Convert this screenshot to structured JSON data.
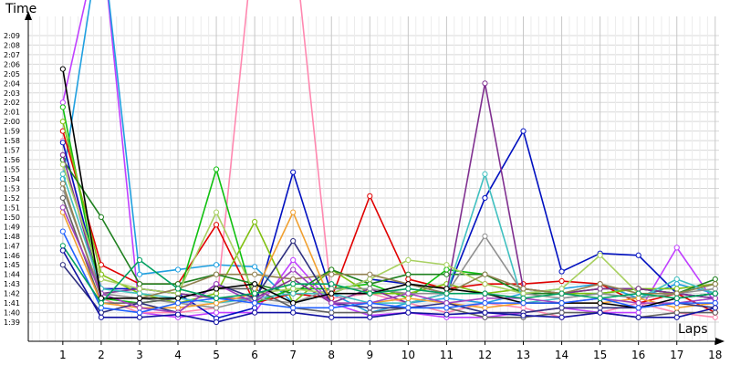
{
  "chart_data": {
    "type": "line",
    "ylabel": "Time",
    "xlabel": "Laps",
    "x": [
      1,
      2,
      3,
      4,
      5,
      6,
      7,
      8,
      9,
      10,
      11,
      12,
      13,
      14,
      15,
      16,
      17,
      18
    ],
    "xlim": [
      0.1,
      18.1
    ],
    "ylim_seconds": [
      97,
      131
    ],
    "y_tick_labels": [
      "1:39",
      "1:40",
      "1:41",
      "1:42",
      "1:43",
      "1:44",
      "1:45",
      "1:46",
      "1:47",
      "1:48",
      "1:49",
      "1:50",
      "1:51",
      "1:52",
      "1:53",
      "1:54",
      "1:55",
      "1:56",
      "1:57",
      "1:58",
      "1:59",
      "2:00",
      "2:01",
      "2:02",
      "2:03",
      "2:04",
      "2:05",
      "2:06",
      "2:07",
      "2:08",
      "2:09"
    ],
    "y_tick_values_seconds": [
      99,
      100,
      101,
      102,
      103,
      104,
      105,
      106,
      107,
      108,
      109,
      110,
      111,
      112,
      113,
      114,
      115,
      116,
      117,
      118,
      119,
      120,
      121,
      122,
      123,
      124,
      125,
      126,
      127,
      128,
      129
    ],
    "grid": true,
    "legend": "none",
    "value_unit": "seconds",
    "series": [
      {
        "color": "#c040ff",
        "values": [
          122.0,
          140.0,
          100.0,
          99.5,
          100.0,
          100.0,
          105.5,
          101.0,
          99.7,
          100.0,
          99.5,
          99.5,
          100.0,
          100.5,
          100.0,
          100.0,
          106.8,
          101.0
        ]
      },
      {
        "color": "#20a0e0",
        "values": [
          114.0,
          140.0,
          104.0,
          104.5,
          105.0,
          104.8,
          101.0,
          102.0,
          100.0,
          101.0,
          101.5,
          101.0,
          102.0,
          102.5,
          103.0,
          101.5,
          103.0,
          102.0
        ]
      },
      {
        "color": "#ff88b0",
        "values": [
          118.0,
          101.5,
          100.0,
          100.0,
          100.5,
          140.0,
          140.0,
          101.5,
          102.0,
          101.0,
          100.0,
          101.0,
          100.5,
          99.5,
          100.0,
          101.0,
          100.0,
          99.5
        ]
      },
      {
        "color": "#0010c0",
        "values": [
          117.8,
          102.5,
          102.5,
          102.0,
          99.4,
          100.5,
          114.7,
          102.0,
          103.5,
          103.0,
          102.0,
          112.0,
          119.0,
          104.3,
          106.2,
          106.0,
          102.0,
          101.5
        ]
      },
      {
        "color": "#e00000",
        "values": [
          119.0,
          105.0,
          103.0,
          103.0,
          109.2,
          101.0,
          102.0,
          101.5,
          112.2,
          103.5,
          102.5,
          103.0,
          103.0,
          103.3,
          103.0,
          101.0,
          102.0,
          100.0
        ]
      },
      {
        "color": "#10c010",
        "values": [
          121.5,
          101.5,
          101.0,
          101.5,
          115.0,
          101.0,
          102.5,
          102.5,
          103.0,
          101.5,
          104.5,
          104.0,
          102.0,
          102.0,
          102.0,
          102.5,
          102.0,
          103.0
        ]
      },
      {
        "color": "#80c010",
        "values": [
          120.0,
          104.0,
          102.0,
          101.0,
          102.0,
          109.5,
          101.0,
          104.5,
          102.0,
          102.0,
          103.0,
          102.0,
          102.5,
          102.0,
          102.0,
          102.5,
          102.5,
          103.0
        ]
      },
      {
        "color": "#208020",
        "values": [
          116.0,
          110.0,
          103.0,
          103.0,
          104.0,
          103.0,
          102.0,
          104.5,
          103.0,
          104.0,
          104.0,
          104.0,
          102.0,
          102.0,
          102.5,
          102.5,
          102.0,
          103.5
        ]
      },
      {
        "color": "#803090",
        "values": [
          116.5,
          102.0,
          102.5,
          102.0,
          101.5,
          101.5,
          103.5,
          101.0,
          102.5,
          101.0,
          102.0,
          124.0,
          102.5,
          102.0,
          102.5,
          102.5,
          102.0,
          101.5
        ]
      },
      {
        "color": "#40c0c0",
        "values": [
          114.5,
          102.5,
          102.0,
          101.5,
          101.0,
          101.5,
          102.0,
          102.0,
          101.0,
          101.0,
          102.0,
          114.5,
          101.0,
          101.5,
          102.0,
          101.5,
          103.5,
          102.0
        ]
      },
      {
        "color": "#909090",
        "values": [
          113.0,
          102.0,
          101.5,
          101.0,
          100.5,
          101.5,
          101.0,
          102.5,
          102.5,
          102.0,
          102.0,
          108.0,
          102.0,
          101.5,
          102.0,
          101.5,
          102.0,
          102.5
        ]
      },
      {
        "color": "#a8d060",
        "values": [
          115.5,
          103.5,
          102.5,
          102.0,
          110.5,
          102.0,
          102.5,
          102.0,
          103.5,
          105.5,
          105.0,
          103.0,
          102.0,
          102.5,
          106.0,
          102.0,
          101.5,
          102.0
        ]
      },
      {
        "color": "#908050",
        "values": [
          113.5,
          101.5,
          101.5,
          102.5,
          104.0,
          104.0,
          103.5,
          104.0,
          104.0,
          103.0,
          102.0,
          104.0,
          102.5,
          102.0,
          103.0,
          102.0,
          102.0,
          103.0
        ]
      },
      {
        "color": "#606060",
        "values": [
          112.0,
          101.0,
          101.0,
          101.5,
          102.5,
          102.5,
          100.5,
          100.0,
          100.0,
          100.5,
          100.5,
          99.5,
          99.5,
          100.0,
          100.0,
          99.5,
          100.0,
          100.0
        ]
      },
      {
        "color": "#f0a030",
        "values": [
          110.5,
          101.0,
          100.5,
          100.5,
          101.0,
          102.0,
          110.5,
          101.0,
          101.0,
          101.5,
          101.0,
          100.5,
          101.0,
          101.0,
          101.0,
          101.5,
          100.5,
          101.0
        ]
      },
      {
        "color": "#303080",
        "values": [
          105.0,
          100.0,
          101.0,
          100.0,
          103.0,
          101.5,
          107.5,
          101.0,
          100.5,
          100.5,
          101.0,
          100.0,
          100.0,
          100.5,
          100.5,
          100.5,
          101.0,
          100.5
        ]
      },
      {
        "color": "#a040c0",
        "values": [
          111.0,
          102.0,
          100.5,
          100.0,
          103.0,
          101.0,
          104.5,
          101.0,
          101.0,
          102.0,
          101.0,
          101.5,
          101.5,
          101.0,
          101.5,
          101.0,
          101.0,
          101.5
        ]
      },
      {
        "color": "#000000",
        "values": [
          125.5,
          101.5,
          101.5,
          101.5,
          102.5,
          103.0,
          101.0,
          102.0,
          102.0,
          103.0,
          102.5,
          102.0,
          101.0,
          101.0,
          101.0,
          100.5,
          101.5,
          102.0
        ]
      },
      {
        "color": "#2060ff",
        "values": [
          108.5,
          100.5,
          100.0,
          101.0,
          101.5,
          101.0,
          100.5,
          100.5,
          101.0,
          100.5,
          100.5,
          101.0,
          101.0,
          101.0,
          101.5,
          100.5,
          101.0,
          101.0
        ]
      },
      {
        "color": "#00a060",
        "values": [
          107.0,
          101.0,
          105.5,
          102.5,
          101.5,
          102.0,
          103.0,
          103.0,
          102.0,
          102.5,
          102.0,
          102.0,
          101.5,
          102.0,
          101.5,
          102.0,
          101.5,
          102.0
        ]
      },
      {
        "color": "#1010a0",
        "values": [
          106.5,
          99.5,
          99.5,
          99.8,
          99.0,
          100.0,
          100.0,
          99.5,
          99.5,
          100.0,
          99.8,
          100.0,
          99.7,
          99.5,
          100.0,
          99.5,
          99.5,
          100.5
        ]
      }
    ]
  }
}
